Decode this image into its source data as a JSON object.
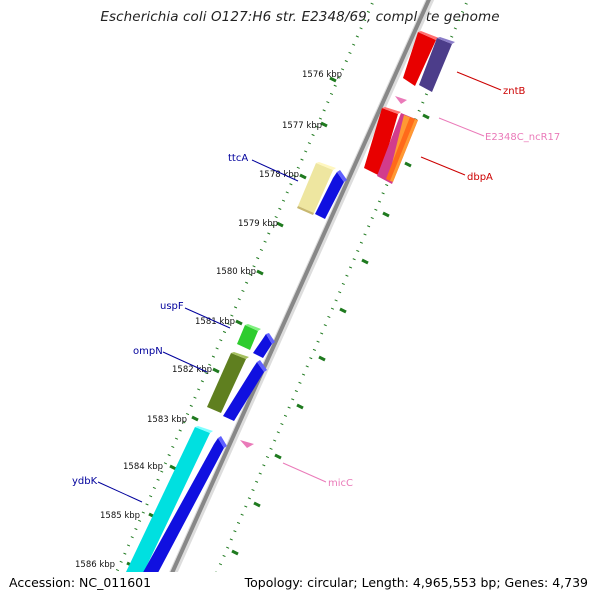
{
  "title": "Escherichia coli O127:H6 str. E2348/69, complete genome",
  "footer": {
    "accession": "Accession: NC_011601",
    "topology": "Topology: circular; Length: 4,965,553 bp; Genes: 4,739"
  },
  "ticks": [
    "1576 kbp",
    "1577 kbp",
    "1578 kbp",
    "1579 kbp",
    "1580 kbp",
    "1581 kbp",
    "1582 kbp",
    "1583 kbp",
    "1584 kbp",
    "1585 kbp",
    "1586 kbp"
  ],
  "genes": {
    "zntB": "zntB",
    "ncR17": "E2348C_ncR17",
    "dbpA": "dbpA",
    "ttcA": "ttcA",
    "uspF": "uspF",
    "ompN": "ompN",
    "micC": "micC",
    "ydbK": "ydbK"
  },
  "colors": {
    "reverse_label": "#cc0000",
    "forward_label": "#00009c",
    "rna_label": "#ea7ab9",
    "backbone": "#888888",
    "tick_dots": "#1f7a1f"
  }
}
